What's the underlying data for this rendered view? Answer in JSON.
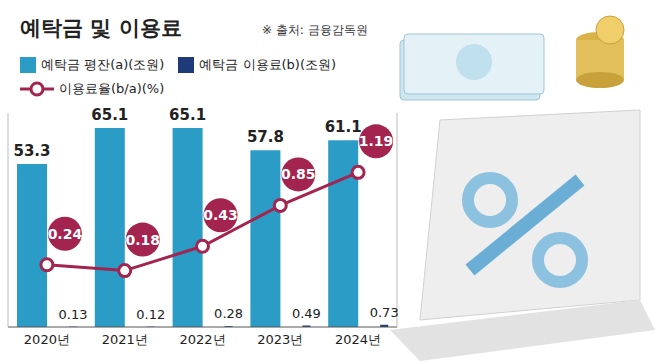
{
  "chart_data": {
    "type": "bar",
    "title": "예탁금 및 이용료",
    "annotations": [
      "※ 출처: 금융감독원"
    ],
    "categories": [
      "2020년",
      "2021년",
      "2022년",
      "2023년",
      "2024년"
    ],
    "series": [
      {
        "name": "예탁금 평잔(a)(조원)",
        "type": "bar",
        "color": "#2a9cc6",
        "values": [
          53.3,
          65.1,
          65.1,
          57.8,
          61.1
        ]
      },
      {
        "name": "예탁금 이용료(b)(조원)",
        "type": "bar",
        "color": "#1e3a78",
        "values": [
          0.13,
          0.12,
          0.28,
          0.49,
          0.73
        ]
      },
      {
        "name": "이용료율(b/a)(%)",
        "type": "line",
        "axis": "y2",
        "color": "#a3244f",
        "marker": "circle",
        "values": [
          0.24,
          0.18,
          0.43,
          0.85,
          1.19
        ]
      }
    ],
    "ylim": [
      0,
      70
    ],
    "yticks": [
      0,
      70
    ],
    "y2lim": [
      -0.4,
      1.8
    ],
    "y2ticks": [
      -0.4,
      1.8
    ],
    "data_labels": true,
    "tick_labels": "x",
    "grid": false
  }
}
